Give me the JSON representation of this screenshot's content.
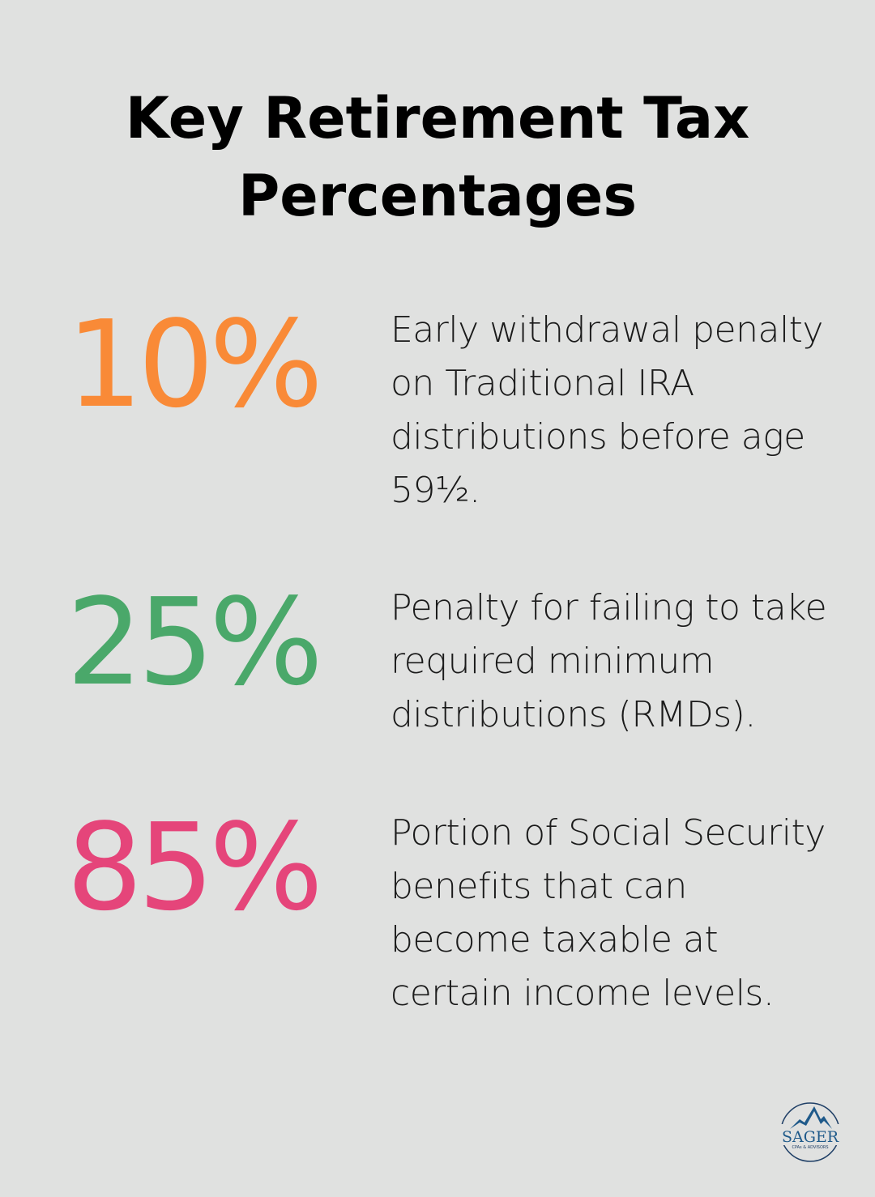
{
  "title": "Key Retirement Tax Percentages",
  "stats": [
    {
      "value": "10%",
      "color": "#f98a37",
      "description": "Early withdrawal penalty on Traditional IRA distributions before age 59½."
    },
    {
      "value": "25%",
      "color": "#4aa86a",
      "description": "Penalty for failing to take required minimum distributions (RMDs)."
    },
    {
      "value": "85%",
      "color": "#e5457a",
      "description": "Portion of Social Security benefits that can become taxable at certain income levels."
    }
  ],
  "logo": {
    "name": "SAGER",
    "tagline": "CPAs & ADVISORS",
    "color": "#1f5a8a"
  }
}
